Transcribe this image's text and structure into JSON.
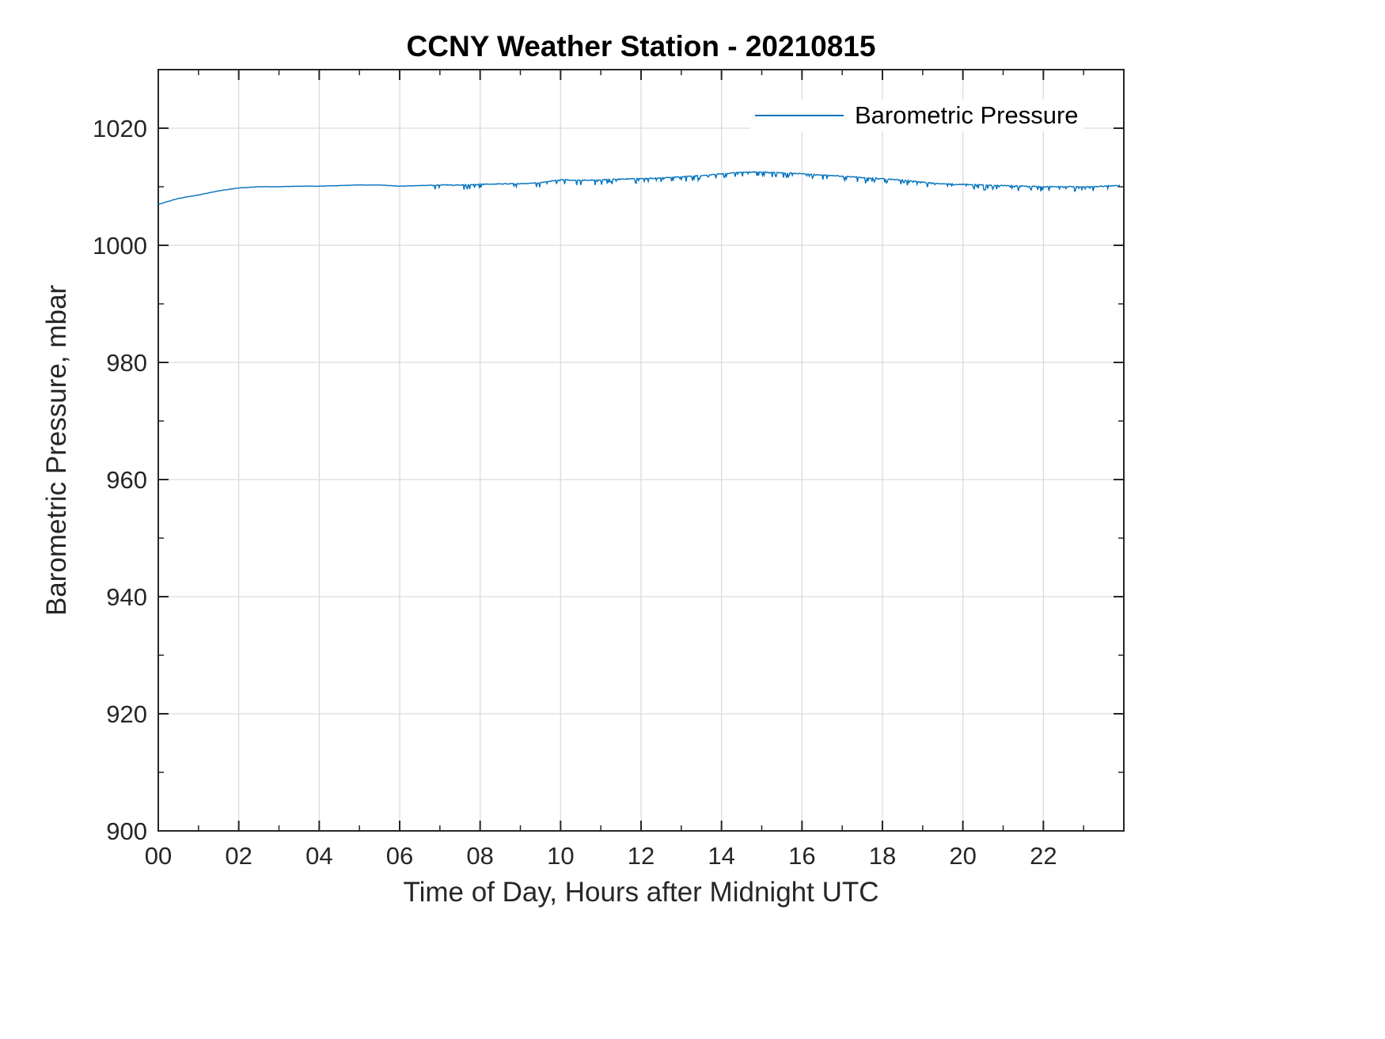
{
  "chart_data": {
    "type": "line",
    "title": "CCNY Weather Station - 20210815",
    "xlabel": "Time of Day, Hours after Midnight UTC",
    "ylabel": "Barometric Pressure, mbar",
    "xlim": [
      0,
      24
    ],
    "ylim": [
      900,
      1030
    ],
    "grid": true,
    "legend_position": "top-right",
    "xticks": {
      "values": [
        0,
        2,
        4,
        6,
        8,
        10,
        12,
        14,
        16,
        18,
        20,
        22
      ],
      "labels": [
        "00",
        "02",
        "04",
        "06",
        "08",
        "10",
        "12",
        "14",
        "16",
        "18",
        "20",
        "22"
      ]
    },
    "yticks": {
      "values": [
        900,
        920,
        940,
        960,
        980,
        1000,
        1020
      ],
      "labels": [
        "900",
        "920",
        "940",
        "960",
        "980",
        "1000",
        "1020"
      ]
    },
    "minor_x_step": 1,
    "minor_y_step": 10,
    "series": [
      {
        "name": "Barometric Pressure",
        "color": "#0072BD",
        "x": [
          0.0,
          0.5,
          1.0,
          1.5,
          2.0,
          2.5,
          3.0,
          3.5,
          4.0,
          4.5,
          5.0,
          5.5,
          6.0,
          6.5,
          7.0,
          7.5,
          8.0,
          8.5,
          9.0,
          9.5,
          10.0,
          10.5,
          11.0,
          11.5,
          12.0,
          12.5,
          13.0,
          13.5,
          14.0,
          14.5,
          15.0,
          15.5,
          16.0,
          16.5,
          17.0,
          17.5,
          18.0,
          18.5,
          19.0,
          19.5,
          20.0,
          20.5,
          21.0,
          21.5,
          22.0,
          22.5,
          23.0,
          23.5,
          23.9
        ],
        "y": [
          1007.0,
          1008.0,
          1008.6,
          1009.3,
          1009.8,
          1010.0,
          1010.0,
          1010.1,
          1010.1,
          1010.2,
          1010.3,
          1010.3,
          1010.1,
          1010.2,
          1010.3,
          1010.3,
          1010.4,
          1010.5,
          1010.5,
          1010.7,
          1011.2,
          1011.1,
          1011.2,
          1011.3,
          1011.4,
          1011.5,
          1011.7,
          1011.9,
          1012.2,
          1012.5,
          1012.5,
          1012.4,
          1012.2,
          1012.0,
          1011.8,
          1011.6,
          1011.4,
          1011.1,
          1010.8,
          1010.5,
          1010.4,
          1010.3,
          1010.2,
          1010.1,
          1010.0,
          1010.0,
          1010.0,
          1010.1,
          1010.2
        ],
        "noise": {
          "start_hour": 6.8,
          "amplitude_mbar": 0.85,
          "direction": "down"
        }
      }
    ]
  }
}
